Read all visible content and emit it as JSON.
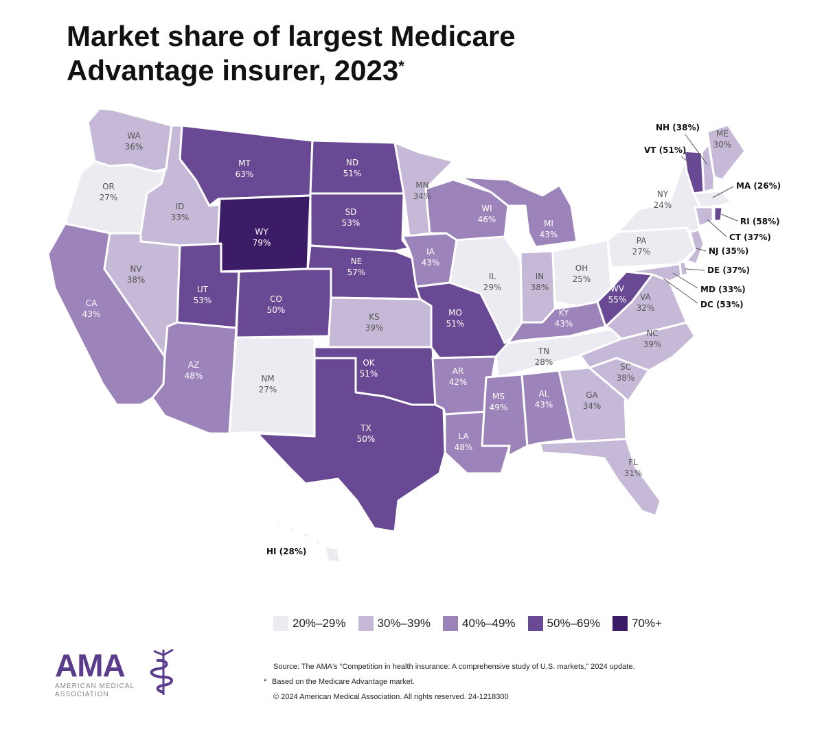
{
  "title": {
    "line1": "Market share of largest Medicare",
    "line2": "Advantage insurer, 2023",
    "asterisk": "*"
  },
  "legend": [
    {
      "label": "20%–29%",
      "color": "#ecebf1"
    },
    {
      "label": "30%–39%",
      "color": "#c5b9d7"
    },
    {
      "label": "40%–49%",
      "color": "#9c83b9"
    },
    {
      "label": "50%–69%",
      "color": "#6a4994"
    },
    {
      "label": "70%+",
      "color": "#3d1c67"
    }
  ],
  "states": {
    "WA": {
      "abbr": "WA",
      "value": "36%",
      "bin": 1
    },
    "OR": {
      "abbr": "OR",
      "value": "27%",
      "bin": 0
    },
    "CA": {
      "abbr": "CA",
      "value": "43%",
      "bin": 2
    },
    "ID": {
      "abbr": "ID",
      "value": "33%",
      "bin": 1
    },
    "NV": {
      "abbr": "NV",
      "value": "38%",
      "bin": 1
    },
    "MT": {
      "abbr": "MT",
      "value": "63%",
      "bin": 3
    },
    "WY": {
      "abbr": "WY",
      "value": "79%",
      "bin": 4
    },
    "UT": {
      "abbr": "UT",
      "value": "53%",
      "bin": 3
    },
    "AZ": {
      "abbr": "AZ",
      "value": "48%",
      "bin": 2
    },
    "CO": {
      "abbr": "CO",
      "value": "50%",
      "bin": 3
    },
    "NM": {
      "abbr": "NM",
      "value": "27%",
      "bin": 0
    },
    "ND": {
      "abbr": "ND",
      "value": "51%",
      "bin": 3
    },
    "SD": {
      "abbr": "SD",
      "value": "53%",
      "bin": 3
    },
    "NE": {
      "abbr": "NE",
      "value": "57%",
      "bin": 3
    },
    "KS": {
      "abbr": "KS",
      "value": "39%",
      "bin": 1
    },
    "OK": {
      "abbr": "OK",
      "value": "51%",
      "bin": 3
    },
    "TX": {
      "abbr": "TX",
      "value": "50%",
      "bin": 3
    },
    "MN": {
      "abbr": "MN",
      "value": "34%",
      "bin": 1
    },
    "IA": {
      "abbr": "IA",
      "value": "43%",
      "bin": 2
    },
    "MO": {
      "abbr": "MO",
      "value": "51%",
      "bin": 3
    },
    "AR": {
      "abbr": "AR",
      "value": "42%",
      "bin": 2
    },
    "LA": {
      "abbr": "LA",
      "value": "48%",
      "bin": 2
    },
    "WI": {
      "abbr": "WI",
      "value": "46%",
      "bin": 2
    },
    "IL": {
      "abbr": "IL",
      "value": "29%",
      "bin": 0
    },
    "MI": {
      "abbr": "MI",
      "value": "43%",
      "bin": 2
    },
    "IN": {
      "abbr": "IN",
      "value": "38%",
      "bin": 1
    },
    "OH": {
      "abbr": "OH",
      "value": "25%",
      "bin": 0
    },
    "KY": {
      "abbr": "KY",
      "value": "43%",
      "bin": 2
    },
    "TN": {
      "abbr": "TN",
      "value": "28%",
      "bin": 0
    },
    "MS": {
      "abbr": "MS",
      "value": "49%",
      "bin": 2
    },
    "AL": {
      "abbr": "AL",
      "value": "43%",
      "bin": 2
    },
    "GA": {
      "abbr": "GA",
      "value": "34%",
      "bin": 1
    },
    "FL": {
      "abbr": "FL",
      "value": "31%",
      "bin": 1
    },
    "SC": {
      "abbr": "SC",
      "value": "38%",
      "bin": 1
    },
    "NC": {
      "abbr": "NC",
      "value": "39%",
      "bin": 1
    },
    "VA": {
      "abbr": "VA",
      "value": "32%",
      "bin": 1
    },
    "WV": {
      "abbr": "WV",
      "value": "55%",
      "bin": 3
    },
    "PA": {
      "abbr": "PA",
      "value": "27%",
      "bin": 0
    },
    "NY": {
      "abbr": "NY",
      "value": "24%",
      "bin": 0
    },
    "ME": {
      "abbr": "ME",
      "value": "30%",
      "bin": 1
    }
  },
  "external": {
    "NH": {
      "text": "NH (38%)",
      "bin": 1
    },
    "VT": {
      "text": "VT (51%)",
      "bin": 3
    },
    "MA": {
      "text": "MA (26%)",
      "bin": 0
    },
    "RI": {
      "text": "RI (58%)",
      "bin": 3
    },
    "CT": {
      "text": "CT (37%)",
      "bin": 1
    },
    "NJ": {
      "text": "NJ (35%)",
      "bin": 1
    },
    "DE": {
      "text": "DE (37%)",
      "bin": 1
    },
    "MD": {
      "text": "MD (33%)",
      "bin": 1
    },
    "DC": {
      "text": "DC (53%)",
      "bin": 3
    },
    "HI": {
      "text": "HI (28%)",
      "bin": 0
    }
  },
  "logo": {
    "name": "AMA",
    "sub1": "AMERICAN MEDICAL",
    "sub2": "ASSOCIATION"
  },
  "notes": {
    "source": "Source: The AMA's “Competition in health insurance: A comprehensive study of U.S. markets,” 2024 update.",
    "asterisk_mark": "*",
    "asterisk_note": "Based on the Medicare Advantage market.",
    "copyright": "© 2024 American Medical Association. All rights reserved. 24-1218300"
  }
}
